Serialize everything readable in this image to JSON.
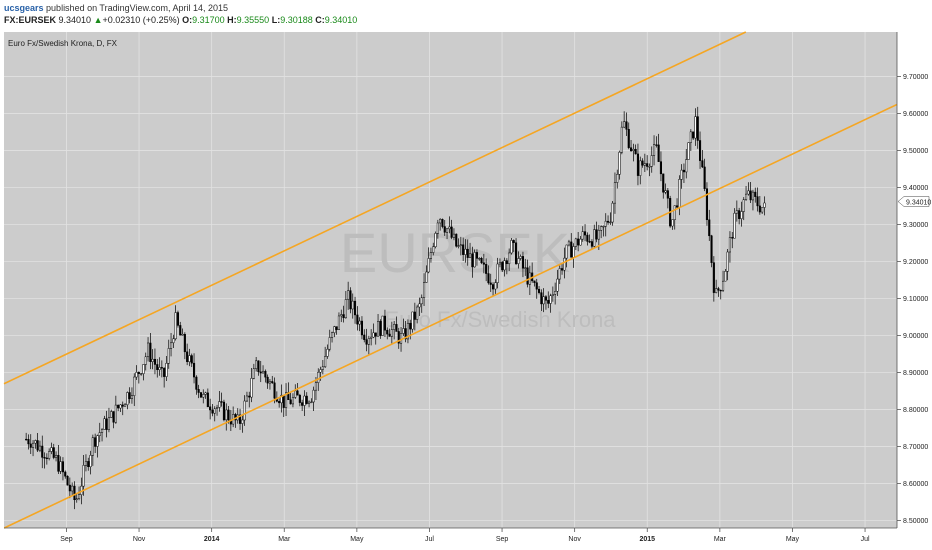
{
  "header": {
    "author": "ucsgears",
    "published": "published on TradingView.com, April 14, 2015",
    "symbol": "FX:EURSEK",
    "price": "9.34010",
    "change": "+0.02310 (+0.25%)",
    "open_label": "O:",
    "open": "9.31700",
    "high_label": "H:",
    "high": "9.35550",
    "low_label": "L:",
    "low": "9.30188",
    "close_label": "C:",
    "close": "9.34010"
  },
  "chart_data": {
    "type": "candlestick",
    "title": "Euro Fx/Swedish Krona, D, FX",
    "watermark_symbol": "EURSEK",
    "watermark_name": "Euro Fx/Swedish Krona",
    "last_price_label": "9.34010",
    "ylim": [
      8.48,
      9.82
    ],
    "y_ticks": [
      "9.70000",
      "9.60000",
      "9.50000",
      "9.40000",
      "9.30000",
      "9.20000",
      "9.10000",
      "9.00000",
      "8.90000",
      "8.80000",
      "8.70000",
      "8.60000",
      "8.50000"
    ],
    "x_ticks": [
      "Sep",
      "Nov",
      "2014",
      "Mar",
      "May",
      "Jul",
      "Sep",
      "Nov",
      "2015",
      "Mar",
      "May",
      "Jul"
    ],
    "x_ticks_bold": [
      "2014",
      "2015"
    ],
    "grid": true,
    "colors": {
      "background": "#cccccc",
      "candles": "#000000",
      "channel": "#f5a623",
      "grid": "#e2e2e2"
    },
    "series": [
      {
        "name": "",
        "points": [
          [
            "Aug 2013",
            8.72
          ],
          [
            "Sep 2013",
            8.66
          ],
          [
            "Sep 2013",
            8.55
          ],
          [
            "Oct 2013",
            8.72
          ],
          [
            "Oct 2013",
            8.78
          ],
          [
            "Nov 2013",
            8.85
          ],
          [
            "Nov 2013",
            8.96
          ],
          [
            "Dec 2013",
            8.88
          ],
          [
            "Dec 2013",
            9.04
          ],
          [
            "Dec 2013",
            8.94
          ],
          [
            "Jan 2014",
            8.83
          ],
          [
            "Jan 2014",
            8.8
          ],
          [
            "Feb 2014",
            8.76
          ],
          [
            "Feb 2014",
            8.92
          ],
          [
            "Mar 2014",
            8.82
          ],
          [
            "Apr 2014",
            8.84
          ],
          [
            "Apr 2014",
            8.98
          ],
          [
            "May 2014",
            9.1
          ],
          [
            "May 2014",
            9.0
          ],
          [
            "Jun 2014",
            9.03
          ],
          [
            "Jun 2014",
            8.99
          ],
          [
            "Jul 2014",
            9.08
          ],
          [
            "Jul 2014",
            9.33
          ],
          [
            "Aug 2014",
            9.24
          ],
          [
            "Aug 2014",
            9.2
          ],
          [
            "Sep 2014",
            9.15
          ],
          [
            "Sep 2014",
            9.24
          ],
          [
            "Oct 2014",
            9.15
          ],
          [
            "Oct 2014",
            9.08
          ],
          [
            "Nov 2014",
            9.22
          ],
          [
            "Nov 2014",
            9.27
          ],
          [
            "Dec 2014",
            9.26
          ],
          [
            "Dec 2014",
            9.33
          ],
          [
            "Dec 2014",
            9.58
          ],
          [
            "Jan 2015",
            9.45
          ],
          [
            "Jan 2015",
            9.5
          ],
          [
            "Feb 2015",
            9.3
          ],
          [
            "Feb 2015",
            9.45
          ],
          [
            "Feb 2015",
            9.58
          ],
          [
            "Mar 2015",
            9.35
          ],
          [
            "Mar 2015",
            9.1
          ],
          [
            "Mar 2015",
            9.17
          ],
          [
            "Mar 2015",
            9.3
          ],
          [
            "Apr 2015",
            9.38
          ],
          [
            "Apr 2015",
            9.34
          ]
        ]
      }
    ],
    "channel_lines": [
      {
        "name": "upper-channel",
        "from": [
          "Aug 2013",
          8.88
        ],
        "to": [
          "Apr 2015",
          9.81
        ]
      },
      {
        "name": "lower-channel",
        "from": [
          "Aug 2013",
          8.49
        ],
        "to": [
          "Jul 2015",
          9.56
        ]
      }
    ]
  }
}
